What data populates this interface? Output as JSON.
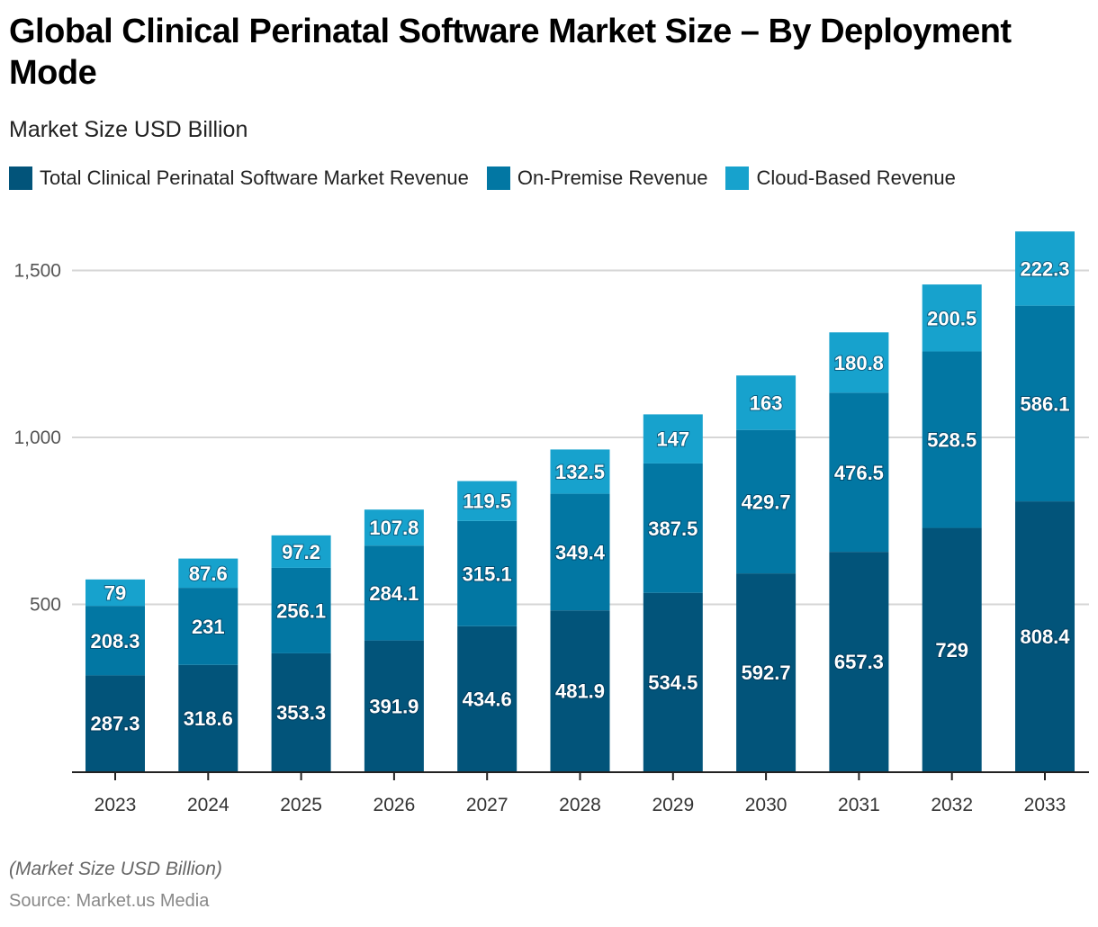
{
  "header": {
    "title": "Global Clinical Perinatal Software Market Size – By Deployment Mode",
    "subtitle": "Market Size USD Billion"
  },
  "legend": [
    {
      "label": "Total Clinical Perinatal Software Market Revenue",
      "color": "#02547a"
    },
    {
      "label": "On-Premise Revenue",
      "color": "#0277a3"
    },
    {
      "label": "Cloud-Based Revenue",
      "color": "#17a2cd"
    }
  ],
  "footer": {
    "note": "(Market Size USD Billion)",
    "source": "Source: Market.us Media"
  },
  "chart_data": {
    "type": "bar",
    "stacked": true,
    "title": "Global Clinical Perinatal Software Market Size – By Deployment Mode",
    "subtitle": "Market Size USD Billion",
    "xlabel": "",
    "ylabel": "",
    "categories": [
      "2023",
      "2024",
      "2025",
      "2026",
      "2027",
      "2028",
      "2029",
      "2030",
      "2031",
      "2032",
      "2033"
    ],
    "series": [
      {
        "name": "Total Clinical Perinatal Software Market Revenue",
        "color": "#02547a",
        "values": [
          287.3,
          318.6,
          353.3,
          391.9,
          434.6,
          481.9,
          534.5,
          592.7,
          657.3,
          729,
          808.4
        ]
      },
      {
        "name": "On-Premise Revenue",
        "color": "#0277a3",
        "values": [
          208.3,
          231,
          256.1,
          284.1,
          315.1,
          349.4,
          387.5,
          429.7,
          476.5,
          528.5,
          586.1
        ]
      },
      {
        "name": "Cloud-Based Revenue",
        "color": "#17a2cd",
        "values": [
          79,
          87.6,
          97.2,
          107.8,
          119.5,
          132.5,
          147,
          163,
          180.8,
          200.5,
          222.3
        ]
      }
    ],
    "value_labels": [
      [
        "287.3",
        "318.6",
        "353.3",
        "391.9",
        "434.6",
        "481.9",
        "534.5",
        "592.7",
        "657.3",
        "729",
        "808.4"
      ],
      [
        "208.3",
        "231",
        "256.1",
        "284.1",
        "315.1",
        "349.4",
        "387.5",
        "429.7",
        "476.5",
        "528.5",
        "586.1"
      ],
      [
        "79",
        "87.6",
        "97.2",
        "107.8",
        "119.5",
        "132.5",
        "147",
        "163",
        "180.8",
        "200.5",
        "222.3"
      ]
    ],
    "ylim": [
      0,
      1650
    ],
    "yticks": [
      500,
      1000,
      1500
    ],
    "ytick_labels": [
      "500",
      "1,000",
      "1,500"
    ],
    "grid": true,
    "legend_position": "top-left"
  }
}
